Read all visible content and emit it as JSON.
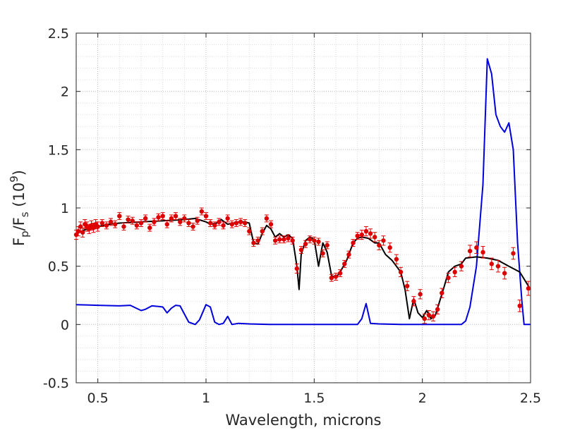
{
  "chart_data": {
    "type": "line",
    "title": "",
    "xlabel": "Wavelength, microns",
    "ylabel": {
      "main": "F",
      "sub1": "p",
      "slash": "/F",
      "sub2": "s",
      "scale_open": " (10",
      "scale_exp": "9",
      "scale_close": ")"
    },
    "xlim": [
      0.4,
      2.5
    ],
    "ylim": [
      -0.5,
      2.5
    ],
    "xticks": [
      0.5,
      1,
      1.5,
      2,
      2.5
    ],
    "xtick_labels": [
      "0.5",
      "1",
      "1.5",
      "2",
      "2.5"
    ],
    "yticks": [
      -0.5,
      0,
      0.5,
      1,
      1.5,
      2,
      2.5
    ],
    "ytick_labels": [
      "-0.5",
      "0",
      "0.5",
      "1",
      "1.5",
      "2",
      "2.5"
    ],
    "grid": true,
    "minor_grid": true,
    "series": [
      {
        "kind": "line",
        "color": "#0000dd",
        "x": [
          0.4,
          0.5,
          0.6,
          0.65,
          0.7,
          0.72,
          0.75,
          0.78,
          0.8,
          0.82,
          0.84,
          0.86,
          0.88,
          0.92,
          0.95,
          0.97,
          1.0,
          1.02,
          1.04,
          1.06,
          1.08,
          1.1,
          1.12,
          1.15,
          1.2,
          1.3,
          1.5,
          1.6,
          1.7,
          1.72,
          1.74,
          1.76,
          1.8,
          1.9,
          2.0,
          2.1,
          2.15,
          2.18,
          2.2,
          2.22,
          2.25,
          2.28,
          2.3,
          2.32,
          2.34,
          2.36,
          2.38,
          2.4,
          2.42,
          2.44,
          2.46,
          2.47,
          2.5
        ],
        "y": [
          0.17,
          0.165,
          0.16,
          0.165,
          0.12,
          0.13,
          0.16,
          0.155,
          0.15,
          0.1,
          0.14,
          0.165,
          0.16,
          0.02,
          0.0,
          0.04,
          0.17,
          0.15,
          0.02,
          0.0,
          0.01,
          0.07,
          0.0,
          0.01,
          0.005,
          0.0,
          0.0,
          0.0,
          0.0,
          0.05,
          0.18,
          0.01,
          0.005,
          0.0,
          0.0,
          0.0,
          0.0,
          0.0,
          0.03,
          0.15,
          0.5,
          1.2,
          2.28,
          2.15,
          1.8,
          1.7,
          1.65,
          1.73,
          1.5,
          0.7,
          0.2,
          0.0,
          0.0
        ]
      },
      {
        "kind": "line",
        "color": "#000000",
        "x": [
          0.4,
          0.45,
          0.5,
          0.55,
          0.6,
          0.7,
          0.8,
          0.9,
          0.95,
          1.0,
          1.02,
          1.05,
          1.07,
          1.1,
          1.15,
          1.18,
          1.2,
          1.22,
          1.24,
          1.26,
          1.28,
          1.3,
          1.32,
          1.34,
          1.36,
          1.38,
          1.4,
          1.42,
          1.43,
          1.44,
          1.46,
          1.48,
          1.5,
          1.52,
          1.54,
          1.56,
          1.58,
          1.6,
          1.62,
          1.65,
          1.68,
          1.7,
          1.72,
          1.75,
          1.78,
          1.8,
          1.83,
          1.86,
          1.9,
          1.92,
          1.94,
          1.96,
          1.98,
          2.0,
          2.02,
          2.04,
          2.06,
          2.08,
          2.1,
          2.12,
          2.15,
          2.18,
          2.2,
          2.25,
          2.3,
          2.35,
          2.4,
          2.45,
          2.5
        ],
        "y": [
          0.78,
          0.82,
          0.84,
          0.86,
          0.87,
          0.88,
          0.89,
          0.9,
          0.91,
          0.88,
          0.86,
          0.87,
          0.9,
          0.86,
          0.88,
          0.88,
          0.87,
          0.7,
          0.69,
          0.78,
          0.85,
          0.82,
          0.75,
          0.78,
          0.75,
          0.77,
          0.74,
          0.5,
          0.3,
          0.6,
          0.72,
          0.75,
          0.73,
          0.5,
          0.7,
          0.62,
          0.42,
          0.4,
          0.45,
          0.55,
          0.7,
          0.74,
          0.75,
          0.74,
          0.7,
          0.7,
          0.6,
          0.55,
          0.45,
          0.3,
          0.05,
          0.22,
          0.1,
          0.06,
          0.12,
          0.05,
          0.08,
          0.2,
          0.32,
          0.45,
          0.5,
          0.52,
          0.57,
          0.58,
          0.57,
          0.55,
          0.5,
          0.45,
          0.3
        ]
      },
      {
        "kind": "errorbar",
        "color": "#dd0000",
        "points": [
          {
            "x": 0.4,
            "y": 0.77,
            "err": 0.04
          },
          {
            "x": 0.41,
            "y": 0.8,
            "err": 0.04
          },
          {
            "x": 0.42,
            "y": 0.84,
            "err": 0.04
          },
          {
            "x": 0.43,
            "y": 0.79,
            "err": 0.04
          },
          {
            "x": 0.44,
            "y": 0.86,
            "err": 0.04
          },
          {
            "x": 0.45,
            "y": 0.84,
            "err": 0.04
          },
          {
            "x": 0.46,
            "y": 0.82,
            "err": 0.04
          },
          {
            "x": 0.47,
            "y": 0.85,
            "err": 0.04
          },
          {
            "x": 0.48,
            "y": 0.83,
            "err": 0.04
          },
          {
            "x": 0.49,
            "y": 0.86,
            "err": 0.04
          },
          {
            "x": 0.5,
            "y": 0.84,
            "err": 0.04
          },
          {
            "x": 0.52,
            "y": 0.87,
            "err": 0.03
          },
          {
            "x": 0.54,
            "y": 0.85,
            "err": 0.03
          },
          {
            "x": 0.56,
            "y": 0.88,
            "err": 0.03
          },
          {
            "x": 0.58,
            "y": 0.86,
            "err": 0.03
          },
          {
            "x": 0.6,
            "y": 0.93,
            "err": 0.03
          },
          {
            "x": 0.62,
            "y": 0.84,
            "err": 0.03
          },
          {
            "x": 0.64,
            "y": 0.9,
            "err": 0.03
          },
          {
            "x": 0.66,
            "y": 0.89,
            "err": 0.03
          },
          {
            "x": 0.68,
            "y": 0.85,
            "err": 0.03
          },
          {
            "x": 0.7,
            "y": 0.87,
            "err": 0.03
          },
          {
            "x": 0.72,
            "y": 0.91,
            "err": 0.03
          },
          {
            "x": 0.74,
            "y": 0.83,
            "err": 0.03
          },
          {
            "x": 0.76,
            "y": 0.88,
            "err": 0.03
          },
          {
            "x": 0.78,
            "y": 0.92,
            "err": 0.03
          },
          {
            "x": 0.8,
            "y": 0.93,
            "err": 0.03
          },
          {
            "x": 0.82,
            "y": 0.86,
            "err": 0.03
          },
          {
            "x": 0.84,
            "y": 0.91,
            "err": 0.03
          },
          {
            "x": 0.86,
            "y": 0.93,
            "err": 0.03
          },
          {
            "x": 0.88,
            "y": 0.88,
            "err": 0.03
          },
          {
            "x": 0.9,
            "y": 0.91,
            "err": 0.03
          },
          {
            "x": 0.92,
            "y": 0.87,
            "err": 0.03
          },
          {
            "x": 0.94,
            "y": 0.84,
            "err": 0.03
          },
          {
            "x": 0.96,
            "y": 0.89,
            "err": 0.03
          },
          {
            "x": 0.98,
            "y": 0.97,
            "err": 0.03
          },
          {
            "x": 1.0,
            "y": 0.93,
            "err": 0.03
          },
          {
            "x": 1.02,
            "y": 0.87,
            "err": 0.03
          },
          {
            "x": 1.04,
            "y": 0.85,
            "err": 0.03
          },
          {
            "x": 1.06,
            "y": 0.88,
            "err": 0.03
          },
          {
            "x": 1.08,
            "y": 0.85,
            "err": 0.03
          },
          {
            "x": 1.1,
            "y": 0.91,
            "err": 0.03
          },
          {
            "x": 1.12,
            "y": 0.86,
            "err": 0.03
          },
          {
            "x": 1.14,
            "y": 0.87,
            "err": 0.03
          },
          {
            "x": 1.16,
            "y": 0.88,
            "err": 0.03
          },
          {
            "x": 1.18,
            "y": 0.87,
            "err": 0.03
          },
          {
            "x": 1.2,
            "y": 0.8,
            "err": 0.03
          },
          {
            "x": 1.22,
            "y": 0.7,
            "err": 0.03
          },
          {
            "x": 1.24,
            "y": 0.72,
            "err": 0.03
          },
          {
            "x": 1.26,
            "y": 0.8,
            "err": 0.03
          },
          {
            "x": 1.28,
            "y": 0.91,
            "err": 0.03
          },
          {
            "x": 1.3,
            "y": 0.86,
            "err": 0.03
          },
          {
            "x": 1.32,
            "y": 0.72,
            "err": 0.03
          },
          {
            "x": 1.34,
            "y": 0.73,
            "err": 0.03
          },
          {
            "x": 1.36,
            "y": 0.73,
            "err": 0.03
          },
          {
            "x": 1.38,
            "y": 0.74,
            "err": 0.03
          },
          {
            "x": 1.4,
            "y": 0.72,
            "err": 0.03
          },
          {
            "x": 1.42,
            "y": 0.48,
            "err": 0.04
          },
          {
            "x": 1.44,
            "y": 0.64,
            "err": 0.03
          },
          {
            "x": 1.46,
            "y": 0.69,
            "err": 0.03
          },
          {
            "x": 1.48,
            "y": 0.73,
            "err": 0.03
          },
          {
            "x": 1.5,
            "y": 0.72,
            "err": 0.03
          },
          {
            "x": 1.52,
            "y": 0.71,
            "err": 0.03
          },
          {
            "x": 1.54,
            "y": 0.61,
            "err": 0.03
          },
          {
            "x": 1.56,
            "y": 0.68,
            "err": 0.03
          },
          {
            "x": 1.58,
            "y": 0.4,
            "err": 0.03
          },
          {
            "x": 1.6,
            "y": 0.41,
            "err": 0.03
          },
          {
            "x": 1.62,
            "y": 0.44,
            "err": 0.03
          },
          {
            "x": 1.64,
            "y": 0.52,
            "err": 0.03
          },
          {
            "x": 1.66,
            "y": 0.6,
            "err": 0.03
          },
          {
            "x": 1.68,
            "y": 0.7,
            "err": 0.03
          },
          {
            "x": 1.7,
            "y": 0.76,
            "err": 0.03
          },
          {
            "x": 1.72,
            "y": 0.77,
            "err": 0.04
          },
          {
            "x": 1.74,
            "y": 0.8,
            "err": 0.04
          },
          {
            "x": 1.76,
            "y": 0.78,
            "err": 0.04
          },
          {
            "x": 1.78,
            "y": 0.75,
            "err": 0.04
          },
          {
            "x": 1.8,
            "y": 0.68,
            "err": 0.04
          },
          {
            "x": 1.82,
            "y": 0.72,
            "err": 0.04
          },
          {
            "x": 1.85,
            "y": 0.66,
            "err": 0.04
          },
          {
            "x": 1.88,
            "y": 0.56,
            "err": 0.04
          },
          {
            "x": 1.9,
            "y": 0.45,
            "err": 0.04
          },
          {
            "x": 1.93,
            "y": 0.33,
            "err": 0.04
          },
          {
            "x": 1.96,
            "y": 0.2,
            "err": 0.04
          },
          {
            "x": 1.99,
            "y": 0.26,
            "err": 0.04
          },
          {
            "x": 2.01,
            "y": 0.05,
            "err": 0.04
          },
          {
            "x": 2.03,
            "y": 0.08,
            "err": 0.04
          },
          {
            "x": 2.05,
            "y": 0.07,
            "err": 0.04
          },
          {
            "x": 2.07,
            "y": 0.13,
            "err": 0.04
          },
          {
            "x": 2.09,
            "y": 0.27,
            "err": 0.04
          },
          {
            "x": 2.12,
            "y": 0.4,
            "err": 0.04
          },
          {
            "x": 2.15,
            "y": 0.45,
            "err": 0.04
          },
          {
            "x": 2.18,
            "y": 0.5,
            "err": 0.04
          },
          {
            "x": 2.22,
            "y": 0.63,
            "err": 0.05
          },
          {
            "x": 2.25,
            "y": 0.66,
            "err": 0.05
          },
          {
            "x": 2.28,
            "y": 0.62,
            "err": 0.05
          },
          {
            "x": 2.32,
            "y": 0.52,
            "err": 0.05
          },
          {
            "x": 2.35,
            "y": 0.5,
            "err": 0.05
          },
          {
            "x": 2.38,
            "y": 0.44,
            "err": 0.05
          },
          {
            "x": 2.42,
            "y": 0.61,
            "err": 0.05
          },
          {
            "x": 2.45,
            "y": 0.16,
            "err": 0.05
          },
          {
            "x": 2.49,
            "y": 0.31,
            "err": 0.06
          }
        ]
      }
    ]
  }
}
